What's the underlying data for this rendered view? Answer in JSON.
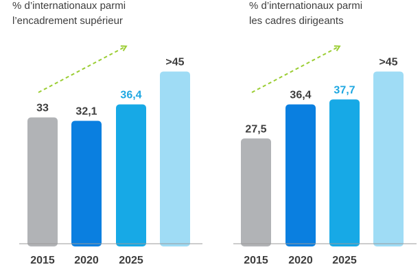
{
  "colors": {
    "text": "#3d3d3d",
    "baseline": "#9a9a9a",
    "arrow": "#9acd32",
    "highlight_label": "#1ea7e1"
  },
  "chart_data": [
    {
      "type": "bar",
      "title_lines": [
        "% d’internationaux parmi",
        "l’encadrement supérieur"
      ],
      "xlabel": "",
      "ylabel": "",
      "ylim": [
        0,
        50
      ],
      "categories": [
        "2015",
        "2020",
        "2025",
        ""
      ],
      "values": [
        33,
        32.1,
        36.4,
        45
      ],
      "value_labels": [
        "33",
        "32,1",
        "36,4",
        ">45"
      ],
      "bar_colors": [
        "#b1b3b6",
        "#0a7fe0",
        "#17a9e6",
        "#9fdcf5"
      ],
      "label_colors": [
        "#3d3d3d",
        "#3d3d3d",
        "#1ea7e1",
        "#3d3d3d"
      ],
      "trend_arrow": true,
      "grid": false
    },
    {
      "type": "bar",
      "title_lines": [
        "% d’internationaux parmi",
        "les cadres dirigeants"
      ],
      "xlabel": "",
      "ylabel": "",
      "ylim": [
        0,
        50
      ],
      "categories": [
        "2015",
        "2020",
        "2025",
        ""
      ],
      "values": [
        27.5,
        36.4,
        37.7,
        45
      ],
      "value_labels": [
        "27,5",
        "36,4",
        "37,7",
        ">45"
      ],
      "bar_colors": [
        "#b1b3b6",
        "#0a7fe0",
        "#17a9e6",
        "#9fdcf5"
      ],
      "label_colors": [
        "#3d3d3d",
        "#3d3d3d",
        "#1ea7e1",
        "#3d3d3d"
      ],
      "trend_arrow": true,
      "grid": false
    }
  ]
}
